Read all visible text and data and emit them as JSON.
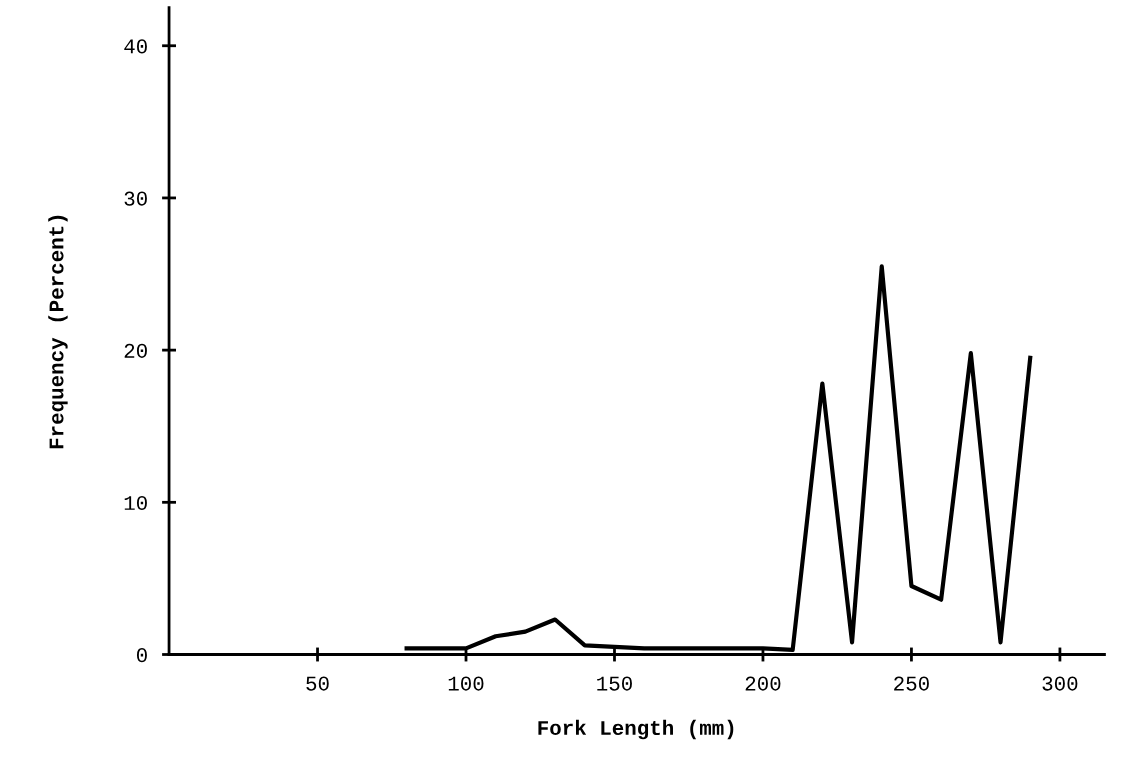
{
  "chart_data": {
    "type": "line",
    "xlabel": "Fork Length (mm)",
    "ylabel": "Frequency (Percent)",
    "x": [
      80,
      90,
      100,
      110,
      120,
      130,
      140,
      150,
      160,
      170,
      180,
      190,
      200,
      210,
      220,
      230,
      240,
      250,
      260,
      270,
      280,
      290
    ],
    "series": [
      {
        "color": "#000000",
        "values": [
          0.4,
          0.4,
          0.4,
          1.2,
          1.5,
          2.3,
          0.6,
          0.5,
          0.4,
          0.4,
          0.4,
          0.4,
          0.4,
          0.3,
          17.8,
          0.8,
          25.5,
          4.5,
          3.6,
          19.8,
          0.8,
          19.5
        ]
      }
    ],
    "xlim": [
      0,
      315
    ],
    "ylim": [
      0,
      42.5
    ],
    "xticks": [
      50,
      100,
      150,
      200,
      250,
      300
    ],
    "yticks": [
      0,
      10,
      20,
      30,
      40
    ],
    "grid": false,
    "legend": false,
    "marker": "none",
    "line_style": "solid"
  }
}
